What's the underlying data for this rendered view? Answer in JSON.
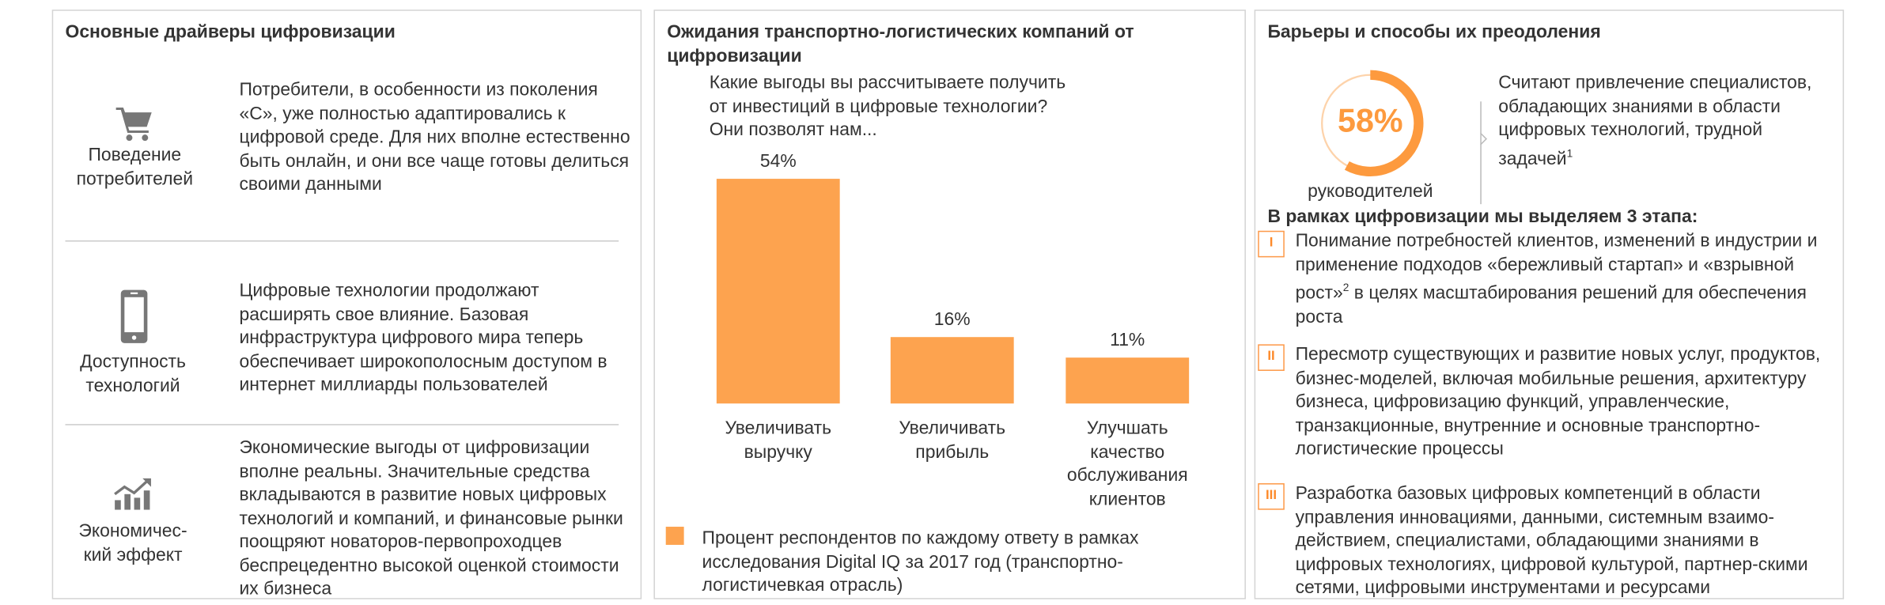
{
  "drivers": {
    "title": "Основные драйверы цифровизации",
    "items": [
      {
        "icon": "cart-icon",
        "label": "Поведение потребителей",
        "text": "Потребители, в особенности из поколения «С», уже полностью адаптировались к цифровой среде. Для них вполне естественно быть онлайн, и они все чаще готовы делиться своими данными"
      },
      {
        "icon": "smartphone-icon",
        "label": "Доступность технологий",
        "text": "Цифровые технологии продолжают расширять свое влияние. Базовая инфраструктура цифрового мира теперь обеспечивает широкополосным доступом в интернет миллиарды пользователей"
      },
      {
        "icon": "growth-chart-icon",
        "label": "Экономичес-кий эффект",
        "text": "Экономические выгоды от цифровизации вполне реальны. Значительные средства вкладываются в развитие новых цифровых технологий и компаний, и финансовые рынки поощряют новаторов-первопроходцев беспрецедентно высокой оценкой стоимости их бизнеса"
      }
    ]
  },
  "expectations": {
    "title": "Ожидания транспортно-логистических компаний от цифровизации",
    "question": "Какие выгоды вы рассчитываете получить от инвестиций в цифровые технологии? Они позволят нам..."
  },
  "chart_data": {
    "type": "bar",
    "categories": [
      "Увеличивать выручку",
      "Увеличивать прибыль",
      "Улучшать качество обслуживания клиентов"
    ],
    "values": [
      54,
      16,
      11
    ],
    "value_labels": [
      "54%",
      "16%",
      "11%"
    ],
    "legend": "Процент респондентов по каждому ответу в рамках исследования Digital IQ за 2017 год (транспортно-логистичевкая отрасль)",
    "color": "#fda34f",
    "ylim": [
      0,
      54
    ]
  },
  "barriers": {
    "title": "Барьеры и способы их преодоления",
    "donut_value": 58,
    "donut_label": "58%",
    "donut_caption": "руководителей",
    "statement": "Считают привлечение специалистов, обладающих знаниями в области цифровых технологий, трудной задачей",
    "statement_note": "1",
    "stages_heading": "В рамках цифровизации мы выделяем 3 этапа:",
    "stages": [
      {
        "num": "I",
        "text_a": "Понимание потребностей клиентов, изменений в индустрии и применение подходов «бережливый стартап» и «взрывной рост»",
        "note": "2",
        "text_b": " в целях масштабирования решений для обеспечения роста"
      },
      {
        "num": "II",
        "text_a": "Пересмотр существующих и развитие новых услуг, продуктов, бизнес-моделей, включая мобильные решения, архитектуру бизнеса, цифровизацию функций, управленческие, транзакционные, внутренние и основные транспортно-логистические процессы"
      },
      {
        "num": "III",
        "text_a": "Разработка базовых цифровых компетенций в области управления инновациями, данными, системным взаимо-действием, специалистами, обладающими знаниями в цифровых технологиях, цифровой культурой, партнер-скими сетями, цифровыми инструментами и ресурсами"
      }
    ],
    "accent": "#fd8a2a"
  }
}
